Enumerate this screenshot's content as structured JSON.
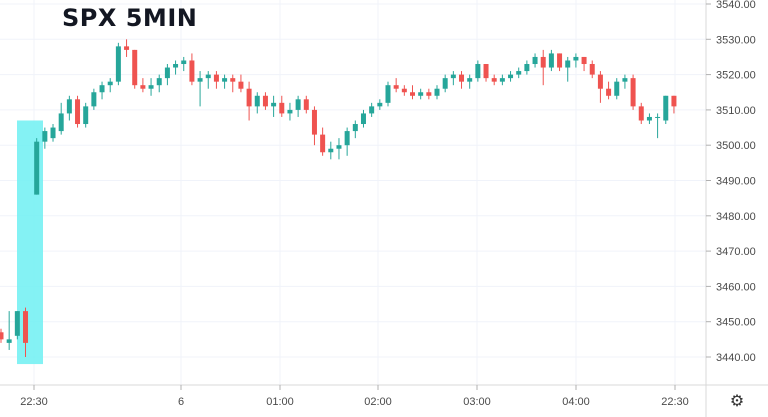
{
  "title": "SPX 5MIN",
  "chart_data": {
    "type": "candlestick",
    "title": "SPX 5MIN",
    "x_ticks": [
      "22:30",
      "6",
      "01:00",
      "02:00",
      "03:00",
      "04:00",
      "22:30"
    ],
    "y_ticks": [
      "3440.00",
      "3450.00",
      "3460.00",
      "3470.00",
      "3480.00",
      "3490.00",
      "3500.00",
      "3510.00",
      "3520.00",
      "3530.00",
      "3540.00"
    ],
    "ylim": [
      3436,
      3543
    ],
    "grid": true,
    "up_color": "#26a69a",
    "down_color": "#ef5350",
    "highlight_color": "#6ef0f2",
    "highlight_range": [
      3438,
      3507
    ],
    "candles": [
      [
        3447,
        3448,
        3444,
        3445
      ],
      [
        3444,
        3453,
        3442,
        3445
      ],
      [
        3446,
        3453,
        3445,
        3453
      ],
      [
        3453,
        3454,
        3440,
        3444
      ],
      [
        3486,
        3502,
        3486,
        3501
      ],
      [
        3501,
        3505,
        3499,
        3504
      ],
      [
        3502,
        3506,
        3501,
        3505
      ],
      [
        3504,
        3512,
        3503,
        3509
      ],
      [
        3509,
        3514,
        3507,
        3513
      ],
      [
        3513,
        3514,
        3505,
        3506
      ],
      [
        3506,
        3512,
        3505,
        3511
      ],
      [
        3511,
        3516,
        3510,
        3515
      ],
      [
        3515,
        3518,
        3513,
        3517
      ],
      [
        3517,
        3519,
        3515,
        3518
      ],
      [
        3518,
        3529,
        3517,
        3528
      ],
      [
        3528,
        3530,
        3525,
        3527
      ],
      [
        3527,
        3527,
        3516,
        3517
      ],
      [
        3517,
        3519,
        3515,
        3516
      ],
      [
        3516,
        3519,
        3514,
        3517
      ],
      [
        3517,
        3520,
        3515,
        3519
      ],
      [
        3519,
        3523,
        3517,
        3522
      ],
      [
        3522,
        3524,
        3520,
        3523
      ],
      [
        3523,
        3525,
        3521,
        3524
      ],
      [
        3524,
        3526,
        3517,
        3518
      ],
      [
        3518,
        3521,
        3511,
        3519
      ],
      [
        3519,
        3521,
        3516,
        3520
      ],
      [
        3520,
        3521,
        3516,
        3518
      ],
      [
        3518,
        3520,
        3516,
        3519
      ],
      [
        3519,
        3520,
        3515,
        3518
      ],
      [
        3518,
        3520,
        3515,
        3516
      ],
      [
        3516,
        3518,
        3507,
        3511
      ],
      [
        3511,
        3515,
        3509,
        3514
      ],
      [
        3514,
        3515,
        3510,
        3511
      ],
      [
        3511,
        3514,
        3508,
        3512
      ],
      [
        3512,
        3514,
        3508,
        3509
      ],
      [
        3509,
        3512,
        3507,
        3510
      ],
      [
        3510,
        3514,
        3508,
        3513
      ],
      [
        3513,
        3514,
        3509,
        3510
      ],
      [
        3510,
        3511,
        3500,
        3503
      ],
      [
        3503,
        3505,
        3497,
        3498
      ],
      [
        3498,
        3501,
        3496,
        3499
      ],
      [
        3499,
        3502,
        3496,
        3500
      ],
      [
        3500,
        3505,
        3497,
        3504
      ],
      [
        3504,
        3507,
        3502,
        3506
      ],
      [
        3506,
        3510,
        3505,
        3509
      ],
      [
        3509,
        3512,
        3508,
        3511
      ],
      [
        3511,
        3513,
        3510,
        3512
      ],
      [
        3512,
        3518,
        3511,
        3517
      ],
      [
        3517,
        3519,
        3515,
        3516
      ],
      [
        3516,
        3517,
        3514,
        3515
      ],
      [
        3515,
        3517,
        3513,
        3514
      ],
      [
        3514,
        3516,
        3513,
        3515
      ],
      [
        3515,
        3516,
        3513,
        3514
      ],
      [
        3514,
        3517,
        3513,
        3516
      ],
      [
        3516,
        3520,
        3515,
        3519
      ],
      [
        3519,
        3521,
        3517,
        3520
      ],
      [
        3520,
        3521,
        3516,
        3518
      ],
      [
        3518,
        3520,
        3516,
        3519
      ],
      [
        3519,
        3524,
        3518,
        3523
      ],
      [
        3523,
        3523,
        3518,
        3519
      ],
      [
        3519,
        3520,
        3517,
        3518
      ],
      [
        3518,
        3520,
        3517,
        3519
      ],
      [
        3519,
        3521,
        3518,
        3520
      ],
      [
        3520,
        3522,
        3519,
        3521
      ],
      [
        3521,
        3524,
        3520,
        3523
      ],
      [
        3523,
        3526,
        3522,
        3525
      ],
      [
        3525,
        3527,
        3517,
        3522
      ],
      [
        3522,
        3527,
        3521,
        3526
      ],
      [
        3526,
        3526,
        3521,
        3522
      ],
      [
        3522,
        3525,
        3518,
        3524
      ],
      [
        3524,
        3526,
        3522,
        3525
      ],
      [
        3525,
        3525,
        3521,
        3523
      ],
      [
        3523,
        3524,
        3519,
        3520
      ],
      [
        3520,
        3521,
        3512,
        3516
      ],
      [
        3516,
        3518,
        3513,
        3514
      ],
      [
        3514,
        3519,
        3513,
        3518
      ],
      [
        3518,
        3520,
        3516,
        3519
      ],
      [
        3519,
        3520,
        3510,
        3511
      ],
      [
        3511,
        3512,
        3506,
        3507
      ],
      [
        3507,
        3509,
        3506,
        3508
      ],
      [
        3508,
        3509,
        3502,
        3508
      ],
      [
        3507,
        3514,
        3506,
        3514
      ],
      [
        3514,
        3514,
        3509,
        3511
      ]
    ]
  }
}
